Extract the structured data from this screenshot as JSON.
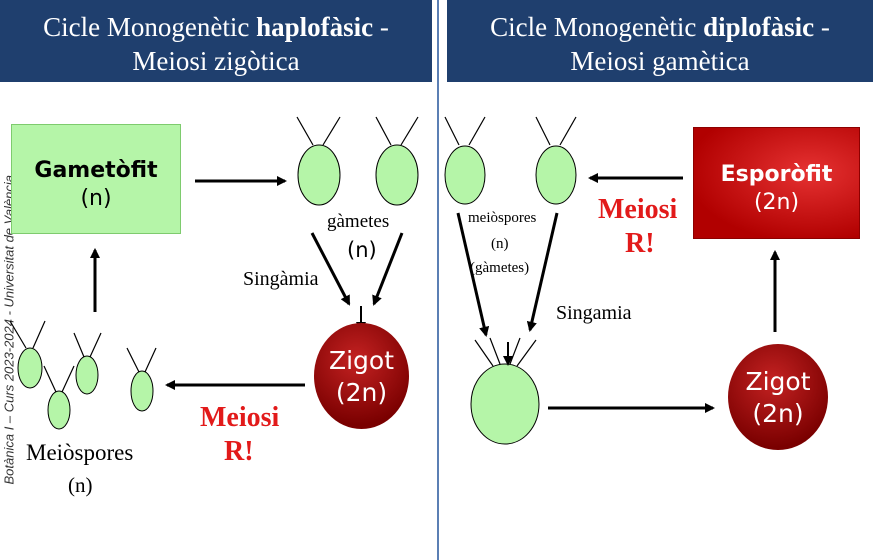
{
  "left_panel": {
    "title_part1": "Cicle Monogenètic ",
    "title_bold": "haplofàsic",
    "title_part2": " -",
    "title_line2": "Meiosi zigòtica",
    "gametophyte_label": "Gametòfit",
    "gametophyte_ploidy": "(n)",
    "gametes_label": "gàmetes",
    "gametes_ploidy": "(n)",
    "syngamy_label": "Singàmia",
    "zygote_label": "Zigot",
    "zygote_ploidy": "(2n)",
    "meiosis_label": "Meiosi",
    "meiosis_r": "R!",
    "meiospores_label": "Meiòspores",
    "meiospores_ploidy": "(n)"
  },
  "right_panel": {
    "title_part1": "Cicle Monogenètic ",
    "title_bold": "diplofàsic",
    "title_part2": " -",
    "title_line2": "Meiosi gamètica",
    "sporophyte_label": "Esporòfit",
    "sporophyte_ploidy": "(2n)",
    "meiospores_label": "meiòspores",
    "meiospores_ploidy": "(n)",
    "gametes_note": "(gàmetes)",
    "syngamy_label": "Singamia",
    "meiosis_label": "Meiosi",
    "meiosis_r": "R!",
    "zygote_label": "Zigot",
    "zygote_ploidy": "(2n)"
  },
  "side_caption": "Botànica I – Curs 2023-2024 - Universitat de València",
  "colors": {
    "header_bg": "#1f3f6e",
    "cell_green": "#b5f5a8",
    "diploid_red": "#b10000",
    "meiosis_text": "#e21a1a",
    "divider": "#5b7fb4"
  }
}
